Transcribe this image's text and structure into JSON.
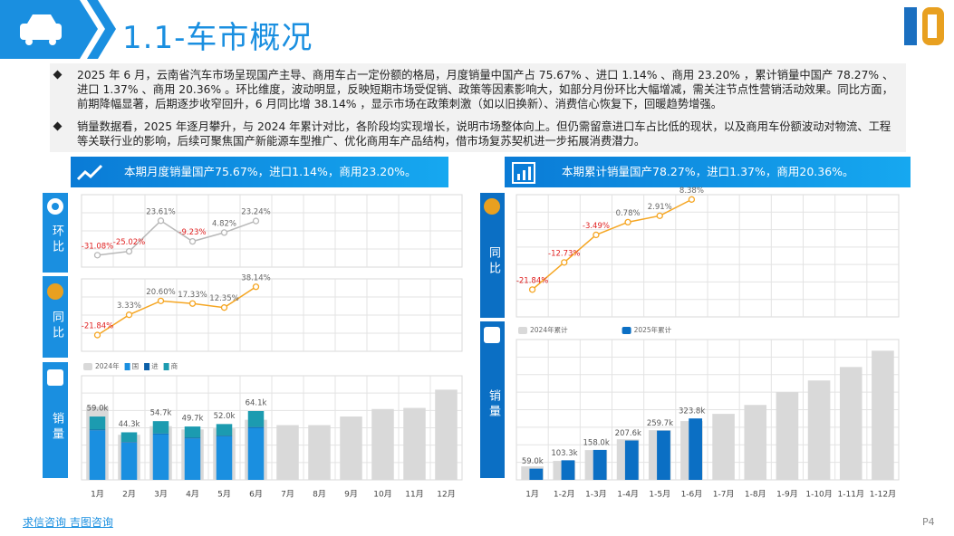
{
  "header": {
    "title": "1.1-车市概况"
  },
  "bullets": [
    "2025 年 6 月，云南省汽车市场呈现国产主导、商用车占一定份额的格局，月度销量中国产占 75.67% 、进口 1.14% 、商用 23.20% ，累计销量中国产 78.27% 、进口 1.37% 、商用 20.36% 。环比维度，波动明显，反映短期市场受促销、政策等因素影响大，如部分月份环比大幅增减，需关注节点性营销活动效果。同比方面，前期降幅显著，后期逐步收窄回升，6 月同比增 38.14% ，显示市场在政策刺激（如以旧换新）、消费信心恢复下，回暖趋势增强。",
    "销量数据看，2025 年逐月攀升，与 2024 年累计对比，各阶段均实现增长，说明市场整体向上。但仍需留意进口车占比低的现状，以及商用车份额波动对物流、工程等关联行业的影响，后续可聚焦国产新能源车型推广、优化商用车产品结构，借市场复苏契机进一步拓展消费潜力。"
  ],
  "left_panel": {
    "banner": "本期月度销量国产75.67%，进口1.14%，商用23.20%。",
    "labels": [
      "环比",
      "同比",
      "销量"
    ]
  },
  "right_panel": {
    "banner": "本期累计销量国产78.27%，进口1.37%，商用20.36%。",
    "labels": [
      "同比",
      "销量"
    ]
  },
  "footer": {
    "source": "求信咨询 吉图咨询",
    "page": "P4"
  },
  "chart_data": [
    {
      "type": "line",
      "values": [
        -31.08,
        -25.02,
        23.61,
        -9.23,
        4.82,
        23.24
      ],
      "value_labels": [
        "-31.08%",
        "-25.02%",
        "23.61%",
        "-9.23%",
        "4.82%",
        "23.24%"
      ],
      "color": "#b8b8b8",
      "ylim": [
        -50,
        65
      ]
    },
    {
      "type": "line",
      "values": [
        -21.84,
        3.33,
        20.6,
        17.33,
        12.35,
        38.14
      ],
      "value_labels": [
        "-21.84%",
        "3.33%",
        "20.60%",
        "17.33%",
        "12.35%",
        "38.14%"
      ],
      "color": "#f5a623",
      "ylim": [
        -42,
        48
      ]
    },
    {
      "type": "bar",
      "categories": [
        "1月",
        "2月",
        "3月",
        "4月",
        "5月",
        "6月",
        "7月",
        "8月",
        "9月",
        "10月",
        "11月",
        "12月"
      ],
      "series": [
        {
          "name": "2024年",
          "color": "#d9d9d9",
          "values": [
            68,
            42,
            50,
            47,
            48,
            56,
            51,
            51,
            59,
            66,
            67,
            84
          ]
        },
        {
          "name": "国",
          "color": "#1a8fe0",
          "stacked": true,
          "values": [
            46.2,
            34.8,
            42.6,
            38.6,
            40.5,
            48.5,
            null,
            null,
            null,
            null,
            null,
            null
          ]
        },
        {
          "name": "进",
          "color": "#0b5fa8",
          "stacked": true,
          "values": [
            0.6,
            0.5,
            0.6,
            0.6,
            0.6,
            0.7,
            null,
            null,
            null,
            null,
            null,
            null
          ]
        },
        {
          "name": "商",
          "color": "#1c9bb0",
          "stacked": true,
          "values": [
            12.2,
            9.0,
            11.5,
            10.5,
            10.9,
            14.9,
            null,
            null,
            null,
            null,
            null,
            null
          ]
        }
      ],
      "totals": {
        "values": [
          59.0,
          44.3,
          54.7,
          49.7,
          52.0,
          64.1
        ],
        "value_labels": [
          "59.0k",
          "44.3k",
          "54.7k",
          "49.7k",
          "52.0k",
          "64.1k"
        ]
      },
      "ylim": [
        0,
        97
      ]
    },
    {
      "type": "line",
      "values": [
        -21.84,
        -12.73,
        -3.49,
        0.78,
        2.91,
        8.38
      ],
      "value_labels": [
        "-21.84%",
        "-12.73%",
        "-3.49%",
        "0.78%",
        "2.91%",
        "8.38%"
      ],
      "color": "#f5a623",
      "ylim": [
        -31,
        10
      ]
    },
    {
      "type": "bar",
      "categories": [
        "1月",
        "1-2月",
        "1-3月",
        "1-4月",
        "1-5月",
        "1-6月",
        "1-7月",
        "1-8月",
        "1-9月",
        "1-10月",
        "1-11月",
        "1-12月"
      ],
      "series": [
        {
          "name": "2024年累计",
          "color": "#d9d9d9",
          "values": [
            71,
            100,
            157,
            214,
            262,
            310,
            348,
            395,
            462,
            524,
            595,
            681
          ]
        },
        {
          "name": "2025年累计",
          "color": "#0b6fc4",
          "values": [
            59.0,
            103.3,
            158.0,
            207.6,
            259.7,
            323.8,
            null,
            null,
            null,
            null,
            null,
            null
          ],
          "value_labels": [
            "59.0k",
            "103.3k",
            "158.0k",
            "207.6k",
            "259.7k",
            "323.8k",
            null,
            null,
            null,
            null,
            null,
            null
          ]
        }
      ],
      "ylim": [
        0,
        740
      ]
    }
  ]
}
